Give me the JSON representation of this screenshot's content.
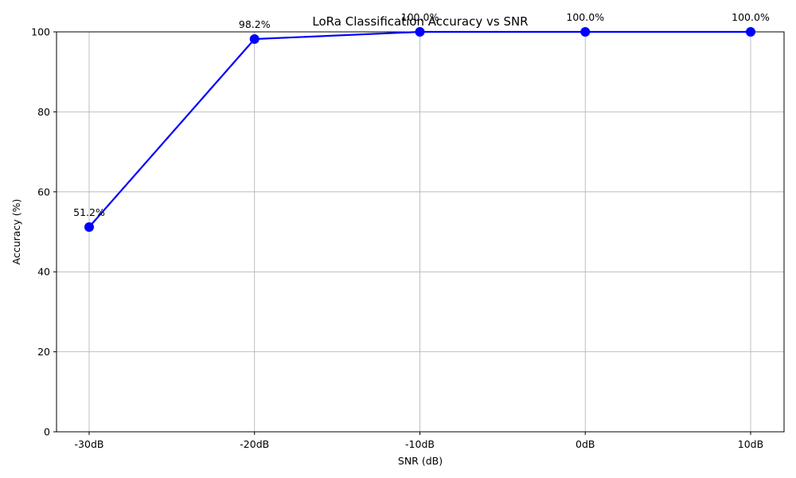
{
  "chart_data": {
    "type": "line",
    "title": "LoRa Classification Accuracy vs SNR",
    "xlabel": "SNR (dB)",
    "ylabel": "Accuracy (%)",
    "categories": [
      "-30dB",
      "-20dB",
      "-10dB",
      "0dB",
      "10dB"
    ],
    "series": [
      {
        "values": [
          51.2,
          98.2,
          100.0,
          100.0,
          100.0
        ],
        "color": "#0000ff",
        "marker": "circle"
      }
    ],
    "data_labels": [
      "51.2%",
      "98.2%",
      "100.0%",
      "100.0%",
      "100.0%"
    ],
    "ylim": [
      0,
      100
    ],
    "yticks": [
      0,
      20,
      40,
      60,
      80,
      100
    ],
    "grid": true,
    "grid_color": "#b0b0b0"
  }
}
